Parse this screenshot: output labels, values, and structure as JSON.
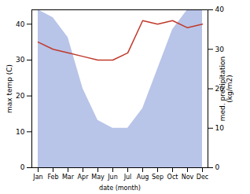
{
  "chart_data": {
    "type": "line",
    "xlabel": "date (month)",
    "ylabel": "max temp (C)",
    "y2label": "med. precipitation\n(kg/m2)",
    "categories": [
      "Jan",
      "Feb",
      "Mar",
      "Apr",
      "May",
      "Jun",
      "Jul",
      "Aug",
      "Sep",
      "Oct",
      "Nov",
      "Dec"
    ],
    "ylim": [
      0,
      44
    ],
    "yticks": [
      0,
      10,
      20,
      30,
      40
    ],
    "y2lim": [
      0,
      40
    ],
    "y2ticks": [
      0,
      10,
      20,
      30,
      40
    ],
    "series": [
      {
        "type": "area",
        "axis": "y2",
        "color": "#b8c4e8",
        "values": [
          40,
          38,
          33,
          20,
          12,
          10,
          10,
          15,
          25,
          35,
          40,
          40
        ]
      },
      {
        "type": "line",
        "color": "#c0392b",
        "values": [
          35,
          33,
          32,
          31,
          30,
          30,
          32,
          41,
          40,
          41,
          39,
          40
        ]
      }
    ]
  }
}
